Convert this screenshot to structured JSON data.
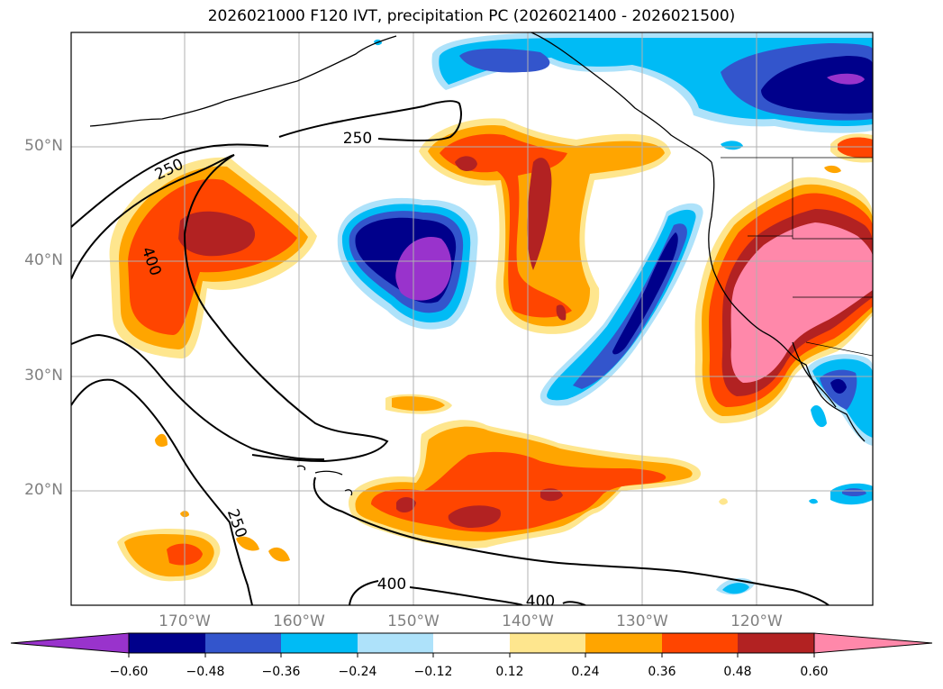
{
  "title": "2026021000 F120 IVT, precipitation PC (2026021400 - 2026021500)",
  "map": {
    "lat_labels": [
      "50°N",
      "40°N",
      "30°N",
      "20°N"
    ],
    "lon_labels": [
      "170°W",
      "160°W",
      "150°W",
      "140°W",
      "130°W",
      "120°W"
    ],
    "ivt_contour_labels": [
      "250",
      "250",
      "400",
      "250",
      "400",
      "400"
    ],
    "gridlines": true,
    "coastlines": true
  },
  "colorbar": {
    "tick_labels": [
      "−0.60",
      "−0.48",
      "−0.36",
      "−0.24",
      "−0.12",
      "0.12",
      "0.24",
      "0.36",
      "0.48",
      "0.60"
    ],
    "colors": [
      "#9933CC",
      "#00008B",
      "#3355CC",
      "#00BBF5",
      "#AEE2FA",
      "#FFFFFF",
      "#FEE68E",
      "#FFA500",
      "#FF4500",
      "#B22222",
      "#FF88AA"
    ],
    "extend": "both"
  },
  "legend_colors": {
    "neg_strong": "#9933CC",
    "neg_dark": "#00008B",
    "neg_mid": "#3355CC",
    "neg_light": "#00BBF5",
    "neg_pale": "#AEE2FA",
    "pos_pale": "#FEE68E",
    "pos_light": "#FFA500",
    "pos_mid": "#FF4500",
    "pos_dark": "#B22222",
    "pos_strong": "#FF88AA"
  }
}
